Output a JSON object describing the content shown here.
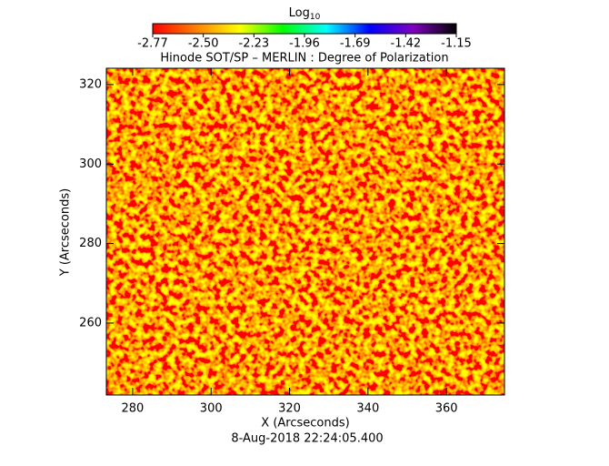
{
  "chart_data": {
    "type": "heatmap",
    "title": "Hinode SOT/SP – MERLIN : Degree of Polarization",
    "footer": "8-Aug-2018 22:24:05.400",
    "xlabel": "X (Arcseconds)",
    "ylabel": "Y (Arcseconds)",
    "xlim": [
      273.3,
      374.8
    ],
    "xticks": [
      280,
      300,
      320,
      340,
      360
    ],
    "ylim": [
      241.9,
      324.1
    ],
    "yticks": [
      260,
      280,
      300,
      320
    ],
    "colorbar": {
      "label": "Log",
      "label_sub": "10",
      "lim": [
        -2.77,
        -1.15
      ],
      "ticks": [
        -2.77,
        {
          "value": -2.5,
          "label": "-2.50"
        },
        -2.23,
        -1.96,
        -1.69,
        -1.42,
        -1.15
      ],
      "colors": [
        "#ff0000",
        "#ff8000",
        "#ffff00",
        "#00ff00",
        "#00ffff",
        "#0000ff",
        "#8000c0",
        "#000000"
      ]
    }
  }
}
